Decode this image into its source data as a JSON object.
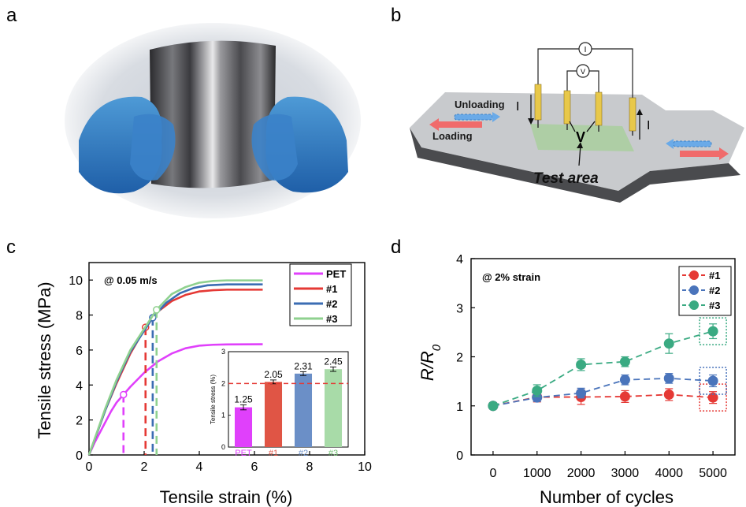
{
  "panels": {
    "a": {
      "letter": "a"
    },
    "b": {
      "letter": "b",
      "current_symbol": "I",
      "ammeter_symbol": "I",
      "voltmeter_symbol": "V",
      "voltage_label": "V",
      "unloading_label": "Unloading",
      "loading_label": "Loading",
      "test_area_label": "Test area"
    },
    "c": {
      "letter": "c"
    },
    "d": {
      "letter": "d"
    }
  },
  "chart_data": [
    {
      "id": "c",
      "type": "line",
      "annotation": "@ 0.05 m/s",
      "xlabel": "Tensile strain (%)",
      "ylabel": "Tensile stress (MPa)",
      "xlim": [
        0,
        10
      ],
      "ylim": [
        0,
        11
      ],
      "xticks": [
        0,
        2,
        4,
        6,
        8,
        10
      ],
      "yticks": [
        0,
        2,
        4,
        6,
        8,
        10
      ],
      "legend_position": "top-right",
      "series": [
        {
          "name": "PET",
          "color": "#e040fb",
          "x": [
            0,
            0.2,
            0.5,
            0.8,
            1.0,
            1.25,
            1.5,
            2.0,
            2.5,
            3.0,
            3.5,
            4.0,
            4.5,
            5.0,
            6.3
          ],
          "y": [
            0,
            0.7,
            1.6,
            2.5,
            3.0,
            3.45,
            3.9,
            4.7,
            5.35,
            5.8,
            6.1,
            6.25,
            6.3,
            6.32,
            6.33
          ],
          "yield_strain": 1.25
        },
        {
          "name": "#1",
          "color": "#e53935",
          "x": [
            0,
            0.3,
            0.6,
            1.0,
            1.5,
            2.05,
            2.5,
            3.0,
            3.5,
            4.0,
            4.5,
            5.0,
            6.3
          ],
          "y": [
            0,
            1.3,
            2.6,
            4.1,
            5.8,
            7.3,
            8.2,
            8.8,
            9.15,
            9.35,
            9.42,
            9.45,
            9.45
          ],
          "yield_strain": 2.05
        },
        {
          "name": "#2",
          "color": "#3b6db3",
          "x": [
            0,
            0.3,
            0.6,
            1.0,
            1.5,
            2.31,
            2.8,
            3.3,
            3.8,
            4.3,
            5.0,
            6.3
          ],
          "y": [
            0,
            1.3,
            2.6,
            4.2,
            5.9,
            7.85,
            8.7,
            9.25,
            9.55,
            9.7,
            9.75,
            9.75
          ],
          "yield_strain": 2.31
        },
        {
          "name": "#3",
          "color": "#8fd18f",
          "x": [
            0,
            0.3,
            0.6,
            1.0,
            1.5,
            2.45,
            3.0,
            3.5,
            4.0,
            4.5,
            5.0,
            6.3
          ],
          "y": [
            0,
            1.35,
            2.7,
            4.3,
            6.0,
            8.3,
            9.2,
            9.6,
            9.85,
            9.95,
            9.98,
            9.98
          ],
          "yield_strain": 2.45
        }
      ],
      "reference": {
        "y_inset": 2
      }
    },
    {
      "id": "c-inset",
      "type": "bar",
      "ylabel": "Tensile stress (%)",
      "ylim": [
        0,
        3
      ],
      "yticks": [
        0,
        1,
        2,
        3
      ],
      "categories": [
        "PET",
        "#1",
        "#2",
        "#3"
      ],
      "values": [
        1.25,
        2.05,
        2.31,
        2.45
      ],
      "value_labels": [
        "1.25",
        "2.05",
        "2.31",
        "2.45"
      ],
      "errors": [
        0.08,
        0.06,
        0.06,
        0.07
      ],
      "colors": [
        "#e040fb",
        "#e05545",
        "#6b8fc7",
        "#a8dba8"
      ],
      "reference_line": 2
    },
    {
      "id": "d",
      "type": "line",
      "annotation": "@ 2% strain",
      "xlabel": "Number of cycles",
      "ylabel": "R/R",
      "ylabel_subscript": "0",
      "xlim": [
        -500,
        5500
      ],
      "ylim": [
        0,
        4
      ],
      "xticks": [
        0,
        1000,
        2000,
        3000,
        4000,
        5000
      ],
      "yticks": [
        0,
        1,
        2,
        3,
        4
      ],
      "legend_position": "top-right",
      "series": [
        {
          "name": "#1",
          "color": "#e53935",
          "x": [
            0,
            1000,
            2000,
            3000,
            4000,
            5000
          ],
          "y": [
            1.0,
            1.18,
            1.18,
            1.19,
            1.23,
            1.17
          ],
          "err": [
            0.04,
            0.1,
            0.15,
            0.12,
            0.12,
            0.12
          ]
        },
        {
          "name": "#2",
          "color": "#4a74bb",
          "x": [
            0,
            1000,
            2000,
            3000,
            4000,
            5000
          ],
          "y": [
            1.0,
            1.17,
            1.26,
            1.53,
            1.56,
            1.51
          ],
          "err": [
            0.04,
            0.08,
            0.1,
            0.1,
            0.1,
            0.12
          ]
        },
        {
          "name": "#3",
          "color": "#3aaa82",
          "x": [
            0,
            1000,
            2000,
            3000,
            4000,
            5000
          ],
          "y": [
            1.0,
            1.31,
            1.84,
            1.9,
            2.27,
            2.52
          ],
          "err": [
            0.04,
            0.12,
            0.12,
            0.1,
            0.2,
            0.15
          ]
        }
      ]
    }
  ]
}
